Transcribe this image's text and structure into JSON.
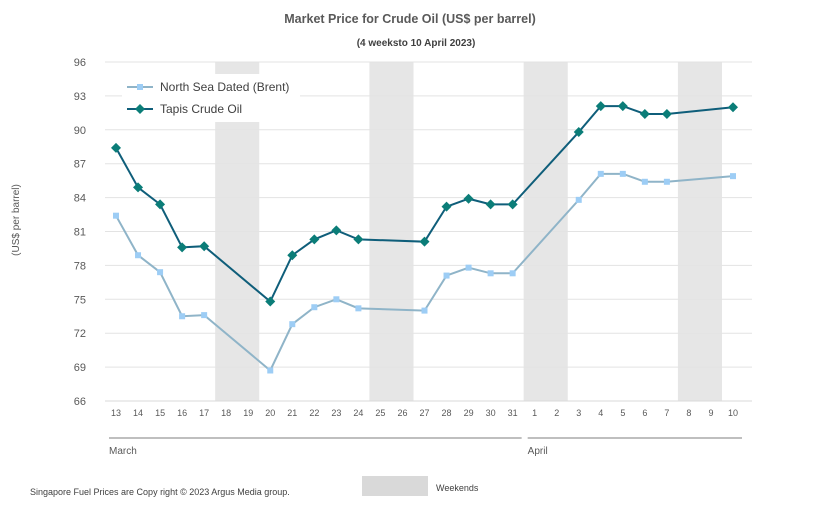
{
  "chart_data": {
    "type": "line",
    "title": "Market Price for Crude  Oil (US$ per barrel)",
    "subtitle": "(4 weeksto 10 April 2023)",
    "ylabel": "(US$ per barrel)",
    "xlabel": "",
    "ylim": [
      66,
      96
    ],
    "yticks": [
      66,
      69,
      72,
      75,
      78,
      81,
      84,
      87,
      90,
      93,
      96
    ],
    "grid": true,
    "legend_position": "top-left",
    "categories": [
      "13",
      "14",
      "15",
      "16",
      "17",
      "18",
      "19",
      "20",
      "21",
      "22",
      "23",
      "24",
      "25",
      "26",
      "27",
      "28",
      "29",
      "30",
      "31",
      "1",
      "2",
      "3",
      "4",
      "5",
      "6",
      "7",
      "8",
      "9",
      "10"
    ],
    "months": [
      {
        "label": "March",
        "from": "13",
        "to": "31"
      },
      {
        "label": "April",
        "from": "1",
        "to": "10"
      }
    ],
    "weekend_ranges": [
      [
        "18",
        "19"
      ],
      [
        "25",
        "26"
      ],
      [
        "1",
        "2"
      ],
      [
        "8",
        "9"
      ]
    ],
    "series": [
      {
        "name": "North Sea Dated (Brent)",
        "color": "#8fb4c8",
        "marker_color": "#9dcdf5",
        "marker": "square",
        "values": [
          82.4,
          78.9,
          77.4,
          73.5,
          73.6,
          null,
          null,
          68.7,
          72.8,
          74.3,
          75.0,
          74.2,
          null,
          null,
          74.0,
          77.1,
          77.8,
          77.3,
          77.3,
          null,
          null,
          83.8,
          86.1,
          86.1,
          85.4,
          85.4,
          null,
          null,
          85.9
        ]
      },
      {
        "name": "Tapis Crude Oil",
        "color": "#0f5e7a",
        "marker_color": "#0b7d78",
        "marker": "diamond",
        "values": [
          88.4,
          84.9,
          83.4,
          79.6,
          79.7,
          null,
          null,
          74.8,
          78.9,
          80.3,
          81.1,
          80.3,
          null,
          null,
          80.1,
          83.2,
          83.9,
          83.4,
          83.4,
          null,
          null,
          89.8,
          92.1,
          92.1,
          91.4,
          91.4,
          null,
          null,
          92.0
        ]
      }
    ],
    "weekend_color": "#e6e6e6",
    "weekends_legend": "Weekends",
    "footer": "Singapore  Fuel Prices are  Copy right © 2023 Argus Media group."
  }
}
